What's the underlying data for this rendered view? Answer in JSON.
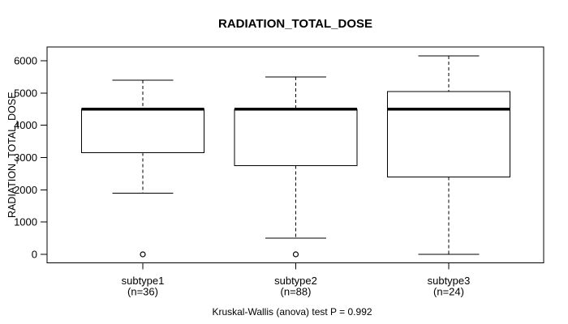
{
  "chart_data": {
    "type": "boxplot",
    "title": "RADIATION_TOTAL_DOSE",
    "xlabel": "",
    "ylabel": "RADIATION_TOTAL_DOSE",
    "ylim": [
      -250,
      6430
    ],
    "yticks": [
      0,
      1000,
      2000,
      3000,
      4000,
      5000,
      6000
    ],
    "ytick_labels": [
      "0",
      "1000",
      "2000",
      "3000",
      "4000",
      "5000",
      "6000"
    ],
    "grid": false,
    "legend": null,
    "categories": [
      "subtype1",
      "subtype2",
      "subtype3"
    ],
    "n_labels": [
      "(n=36)",
      "(n=88)",
      "(n=24)"
    ],
    "group_sizes": [
      36,
      88,
      24
    ],
    "series": [
      {
        "name": "subtype1",
        "n": 36,
        "whisker_low": 1900,
        "q1": 3150,
        "median": 4500,
        "q3": 4500,
        "whisker_high": 5400,
        "outliers": [
          0
        ]
      },
      {
        "name": "subtype2",
        "n": 88,
        "whisker_low": 500,
        "q1": 2750,
        "median": 4500,
        "q3": 4500,
        "whisker_high": 5500,
        "outliers": [
          0
        ]
      },
      {
        "name": "subtype3",
        "n": 24,
        "whisker_low": 0,
        "q1": 2400,
        "median": 4500,
        "q3": 5050,
        "whisker_high": 6150,
        "outliers": []
      }
    ],
    "annotation": "Kruskal-Wallis (anova) test P = 0.992",
    "colors": {
      "line": "#000000",
      "fill": "#ffffff",
      "background": "#ffffff"
    }
  }
}
